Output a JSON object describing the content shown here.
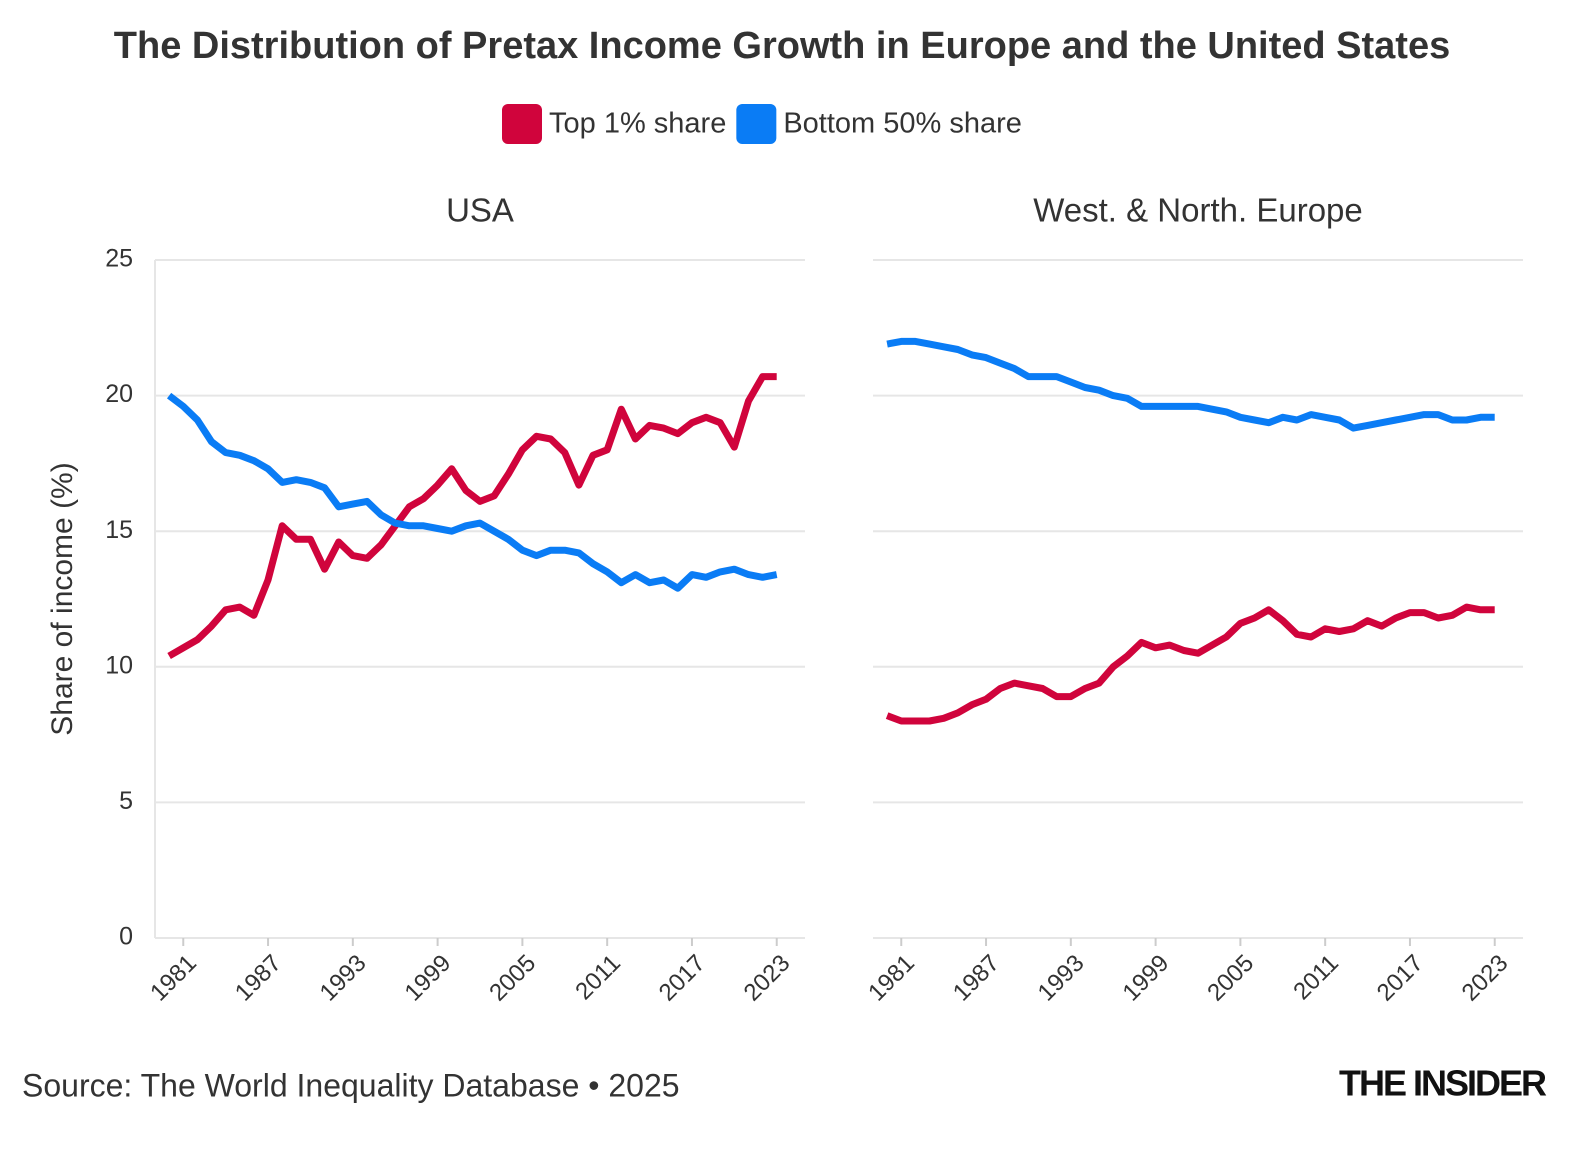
{
  "title": "The Distribution of Pretax Income Growth in Europe and the United States",
  "source": "Source: The World Inequality Database • 2025",
  "brand": "THE INSIDER",
  "chart_data": [
    {
      "type": "line",
      "title": "USA",
      "y_label": "Share of income (%)",
      "x": [
        1980,
        1981,
        1982,
        1983,
        1984,
        1985,
        1986,
        1987,
        1988,
        1989,
        1990,
        1991,
        1992,
        1993,
        1994,
        1995,
        1996,
        1997,
        1998,
        1999,
        2000,
        2001,
        2002,
        2003,
        2004,
        2005,
        2006,
        2007,
        2008,
        2009,
        2010,
        2011,
        2012,
        2013,
        2014,
        2015,
        2016,
        2017,
        2018,
        2019,
        2020,
        2021,
        2022,
        2023
      ],
      "series": [
        {
          "name": "Top 1% share",
          "color": "#d0043c",
          "values": [
            10.4,
            10.7,
            11.0,
            11.5,
            12.1,
            12.2,
            11.9,
            13.2,
            15.2,
            14.7,
            14.7,
            13.6,
            14.6,
            14.1,
            14.0,
            14.5,
            15.2,
            15.9,
            16.2,
            16.7,
            17.3,
            16.5,
            16.1,
            16.3,
            17.1,
            18.0,
            18.5,
            18.4,
            17.9,
            16.7,
            17.8,
            18.0,
            19.5,
            18.4,
            18.9,
            18.8,
            18.6,
            19.0,
            19.2,
            19.0,
            18.1,
            19.8,
            20.7,
            20.7
          ]
        },
        {
          "name": "Bottom 50% share",
          "color": "#0a7cf5",
          "values": [
            20.0,
            19.6,
            19.1,
            18.3,
            17.9,
            17.8,
            17.6,
            17.3,
            16.8,
            16.9,
            16.8,
            16.6,
            15.9,
            16.0,
            16.1,
            15.6,
            15.3,
            15.2,
            15.2,
            15.1,
            15.0,
            15.2,
            15.3,
            15.0,
            14.7,
            14.3,
            14.1,
            14.3,
            14.3,
            14.2,
            13.8,
            13.5,
            13.1,
            13.4,
            13.1,
            13.2,
            12.9,
            13.4,
            13.3,
            13.5,
            13.6,
            13.4,
            13.3,
            13.4
          ]
        }
      ],
      "xlim": [
        1979,
        2025
      ],
      "xticks": [
        1981,
        1987,
        1993,
        1999,
        2005,
        2011,
        2017,
        2023
      ],
      "ylim": [
        0,
        25
      ],
      "yticks": [
        0,
        5,
        10,
        15,
        20,
        25
      ],
      "grid": true
    },
    {
      "type": "line",
      "title": "West. & North. Europe",
      "x": [
        1980,
        1981,
        1982,
        1983,
        1984,
        1985,
        1986,
        1987,
        1988,
        1989,
        1990,
        1991,
        1992,
        1993,
        1994,
        1995,
        1996,
        1997,
        1998,
        1999,
        2000,
        2001,
        2002,
        2003,
        2004,
        2005,
        2006,
        2007,
        2008,
        2009,
        2010,
        2011,
        2012,
        2013,
        2014,
        2015,
        2016,
        2017,
        2018,
        2019,
        2020,
        2021,
        2022,
        2023
      ],
      "series": [
        {
          "name": "Top 1% share",
          "color": "#d0043c",
          "values": [
            8.2,
            8.0,
            8.0,
            8.0,
            8.1,
            8.3,
            8.6,
            8.8,
            9.2,
            9.4,
            9.3,
            9.2,
            8.9,
            8.9,
            9.2,
            9.4,
            10.0,
            10.4,
            10.9,
            10.7,
            10.8,
            10.6,
            10.5,
            10.8,
            11.1,
            11.6,
            11.8,
            12.1,
            11.7,
            11.2,
            11.1,
            11.4,
            11.3,
            11.4,
            11.7,
            11.5,
            11.8,
            12.0,
            12.0,
            11.8,
            11.9,
            12.2,
            12.1,
            12.1
          ]
        },
        {
          "name": "Bottom 50% share",
          "color": "#0a7cf5",
          "values": [
            21.9,
            22.0,
            22.0,
            21.9,
            21.8,
            21.7,
            21.5,
            21.4,
            21.2,
            21.0,
            20.7,
            20.7,
            20.7,
            20.5,
            20.3,
            20.2,
            20.0,
            19.9,
            19.6,
            19.6,
            19.6,
            19.6,
            19.6,
            19.5,
            19.4,
            19.2,
            19.1,
            19.0,
            19.2,
            19.1,
            19.3,
            19.2,
            19.1,
            18.8,
            18.9,
            19.0,
            19.1,
            19.2,
            19.3,
            19.3,
            19.1,
            19.1,
            19.2,
            19.2
          ]
        }
      ],
      "xlim": [
        1979,
        2025
      ],
      "xticks": [
        1981,
        1987,
        1993,
        1999,
        2005,
        2011,
        2017,
        2023
      ],
      "ylim": [
        0,
        25
      ],
      "yticks": [
        0,
        5,
        10,
        15,
        20,
        25
      ],
      "grid": true
    }
  ]
}
